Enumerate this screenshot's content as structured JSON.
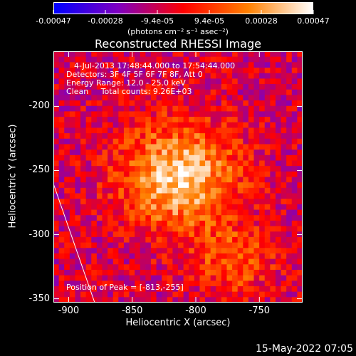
{
  "colorbar": {
    "tick_labels": [
      "-0.00047",
      "-0.00028",
      "-9.4e-05",
      "9.4e-05",
      "0.00028",
      "0.00047"
    ],
    "units_label": "(photons cm⁻² s⁻¹ asec⁻²)",
    "range": [
      -0.00047,
      0.00047
    ],
    "colors": [
      "#0000ff",
      "#8000c0",
      "#ff0000",
      "#ff8000",
      "#ffffff"
    ]
  },
  "chart_data": {
    "type": "heatmap",
    "title": "Reconstructed RHESSI Image",
    "xlabel": "Heliocentric X (arcsec)",
    "ylabel": "Heliocentric Y (arcsec)",
    "x_ticks": [
      "-900",
      "-850",
      "-800",
      "-750"
    ],
    "y_ticks": [
      "-200",
      "-250",
      "-300",
      "-350"
    ],
    "xlim": [
      -912,
      -716
    ],
    "ylim": [
      -353,
      -157
    ],
    "peak_position": [
      -813,
      -255
    ],
    "annotations": {
      "time_range": "4-Jul-2013 17:48:44.000 to 17:54:44.000",
      "detectors": "Detectors: 3F 4F 5F 6F 7F 8F, Att 0",
      "energy_range": "Energy Range: 12.0 - 25.0 keV",
      "method_counts": "Clean     Total counts: 9.26E+03",
      "peak_label": "Position of Peak = [-813,-255]"
    }
  },
  "footer": {
    "datestamp": "15-May-2022 07:05"
  }
}
